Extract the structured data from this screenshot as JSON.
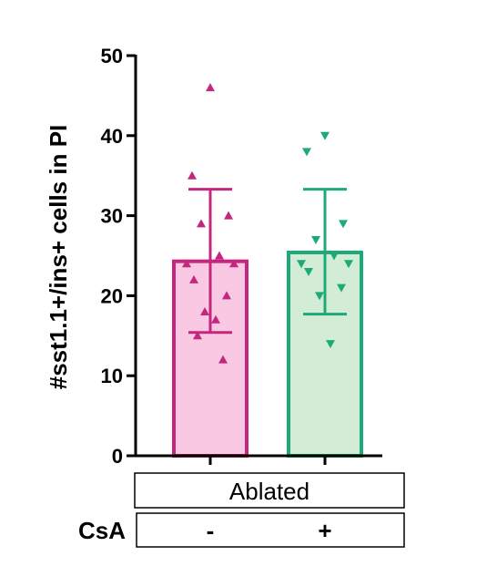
{
  "chart_data": {
    "type": "bar",
    "ylabel": "#sst1.1+/ins+ cells in PI",
    "ylim": [
      0,
      50
    ],
    "yticks": [
      0,
      10,
      20,
      30,
      40,
      50
    ],
    "group_label": "Ablated",
    "row_label": "CsA",
    "categories": [
      "-",
      "+"
    ],
    "series": [
      {
        "category": "-",
        "mean": 24.3,
        "sd_low": 15.4,
        "sd_high": 33.3,
        "marker": "triangle-up",
        "stroke": "#c4287e",
        "fill": "#f9c8e2",
        "points": [
          46,
          35,
          30,
          29,
          25,
          24,
          24,
          22,
          20,
          18,
          17,
          15,
          12
        ]
      },
      {
        "category": "+",
        "mean": 25.4,
        "sd_low": 17.7,
        "sd_high": 33.3,
        "marker": "triangle-down",
        "stroke": "#1eaa78",
        "fill": "#d3ecd6",
        "points": [
          40,
          38,
          29,
          27,
          25,
          24,
          24,
          23,
          21,
          20,
          14
        ]
      }
    ]
  }
}
